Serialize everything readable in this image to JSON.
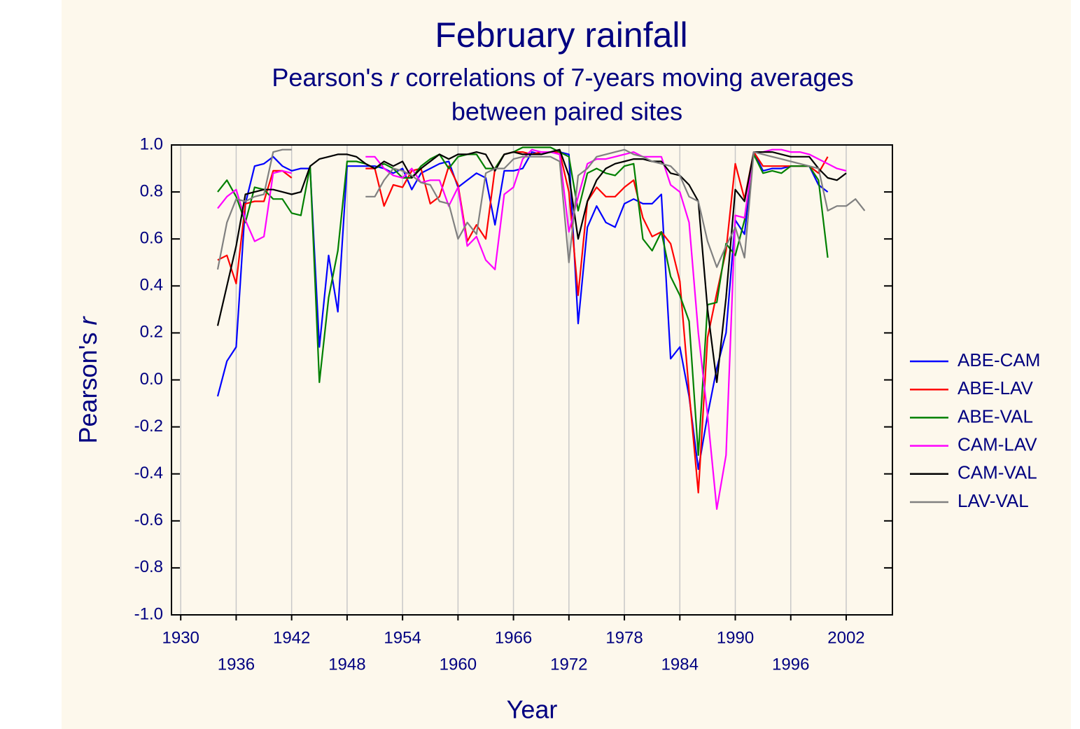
{
  "chart_data": {
    "type": "line",
    "title": "February rainfall",
    "subtitle": {
      "line1_start": "Pearson's ",
      "line1_italic": "r",
      "line1_end": " correlations of 7-years moving averages",
      "line2": "between paired sites"
    },
    "x_label": "Year",
    "y_label": {
      "text": "Pearson's ",
      "italic": "r"
    },
    "x": [
      1934,
      1935,
      1936,
      1937,
      1938,
      1939,
      1940,
      1941,
      1942,
      1943,
      1944,
      1945,
      1946,
      1947,
      1948,
      1949,
      1950,
      1951,
      1952,
      1953,
      1954,
      1955,
      1956,
      1957,
      1958,
      1959,
      1960,
      1961,
      1962,
      1963,
      1964,
      1965,
      1966,
      1967,
      1968,
      1969,
      1970,
      1971,
      1972,
      1973,
      1974,
      1975,
      1976,
      1977,
      1978,
      1979,
      1980,
      1981,
      1982,
      1983,
      1984,
      1985,
      1986,
      1987,
      1988,
      1989,
      1990,
      1991,
      1992,
      1993,
      1994,
      1995,
      1996,
      1997,
      1998,
      1999,
      2000,
      2001,
      2002,
      2003,
      2004
    ],
    "series": [
      {
        "name": "ABE-CAM",
        "color": "#0000ff",
        "values": [
          -0.07,
          0.08,
          0.14,
          0.75,
          0.91,
          0.92,
          0.95,
          0.91,
          0.89,
          0.9,
          0.9,
          0.14,
          0.53,
          0.29,
          0.91,
          0.91,
          0.91,
          0.91,
          0.9,
          0.88,
          0.9,
          0.81,
          0.88,
          0.9,
          0.92,
          0.93,
          0.82,
          0.85,
          0.88,
          0.86,
          0.66,
          0.89,
          0.89,
          0.9,
          0.97,
          0.96,
          0.97,
          0.97,
          0.96,
          0.24,
          0.65,
          0.74,
          0.67,
          0.65,
          0.75,
          0.77,
          0.75,
          0.75,
          0.79,
          0.09,
          0.14,
          -0.07,
          -0.38,
          -0.15,
          0.05,
          0.2,
          0.68,
          0.62,
          0.97,
          0.89,
          0.9,
          0.9,
          0.91,
          0.91,
          0.91,
          0.83,
          0.8,
          null,
          null,
          null,
          null
        ]
      },
      {
        "name": "ABE-LAV",
        "color": "#ff0000",
        "values": [
          0.51,
          0.53,
          0.41,
          0.75,
          0.76,
          0.76,
          0.89,
          0.89,
          0.86,
          null,
          null,
          null,
          null,
          null,
          null,
          null,
          0.9,
          0.9,
          0.74,
          0.83,
          0.82,
          0.89,
          0.9,
          0.75,
          0.78,
          0.91,
          0.83,
          0.59,
          0.66,
          0.6,
          0.9,
          0.96,
          0.97,
          0.97,
          0.96,
          0.97,
          0.97,
          0.97,
          0.8,
          0.36,
          0.76,
          0.82,
          0.78,
          0.78,
          0.82,
          0.85,
          0.69,
          0.61,
          0.63,
          0.58,
          0.42,
          -0.05,
          -0.48,
          0.18,
          0.37,
          0.55,
          0.92,
          0.77,
          0.97,
          0.91,
          0.91,
          0.91,
          0.91,
          0.91,
          0.91,
          0.88,
          0.95,
          null,
          null,
          null,
          null
        ]
      },
      {
        "name": "ABE-VAL",
        "color": "#008000",
        "values": [
          0.8,
          0.85,
          0.78,
          0.67,
          0.82,
          0.81,
          0.77,
          0.77,
          0.71,
          0.7,
          0.91,
          -0.01,
          0.35,
          0.55,
          0.93,
          0.93,
          0.92,
          0.9,
          0.92,
          0.9,
          0.86,
          0.86,
          0.91,
          0.94,
          0.96,
          0.9,
          0.95,
          0.96,
          0.96,
          0.9,
          0.9,
          0.96,
          0.97,
          0.99,
          0.99,
          0.99,
          0.99,
          0.97,
          0.95,
          0.72,
          0.88,
          0.9,
          0.88,
          0.87,
          0.91,
          0.92,
          0.6,
          0.55,
          0.63,
          0.44,
          0.36,
          0.25,
          -0.32,
          0.32,
          0.33,
          0.58,
          0.53,
          0.68,
          0.96,
          0.88,
          0.89,
          0.88,
          0.91,
          0.91,
          0.91,
          0.85,
          0.52,
          null,
          null,
          null,
          null
        ]
      },
      {
        "name": "CAM-LAV",
        "color": "#ff00ff",
        "values": [
          0.73,
          0.78,
          0.81,
          0.68,
          0.59,
          0.61,
          0.88,
          0.89,
          0.88,
          null,
          null,
          null,
          null,
          null,
          null,
          null,
          0.95,
          0.95,
          0.9,
          0.87,
          0.86,
          0.9,
          0.84,
          0.85,
          0.85,
          0.74,
          0.82,
          0.57,
          0.61,
          0.51,
          0.47,
          0.79,
          0.82,
          0.94,
          0.98,
          0.97,
          0.97,
          0.96,
          0.63,
          0.78,
          0.92,
          0.94,
          0.94,
          0.95,
          0.96,
          0.97,
          0.95,
          0.95,
          0.95,
          0.83,
          0.8,
          0.67,
          0.2,
          -0.15,
          -0.55,
          -0.32,
          0.7,
          0.69,
          0.97,
          0.97,
          0.98,
          0.98,
          0.97,
          0.97,
          0.96,
          0.94,
          0.92,
          0.9,
          0.89,
          null,
          null
        ]
      },
      {
        "name": "CAM-VAL",
        "color": "#000000",
        "values": [
          0.23,
          0.4,
          0.57,
          0.79,
          0.8,
          0.81,
          0.81,
          0.8,
          0.79,
          0.8,
          0.91,
          0.94,
          0.95,
          0.96,
          0.96,
          0.95,
          0.92,
          0.9,
          0.93,
          0.91,
          0.93,
          0.86,
          0.9,
          0.93,
          0.96,
          0.94,
          0.96,
          0.96,
          0.97,
          0.96,
          0.89,
          0.96,
          0.97,
          0.96,
          0.96,
          0.96,
          0.97,
          0.98,
          0.87,
          0.6,
          0.76,
          0.85,
          0.9,
          0.92,
          0.93,
          0.94,
          0.94,
          0.93,
          0.93,
          0.88,
          0.87,
          0.83,
          0.76,
          0.3,
          -0.01,
          0.35,
          0.81,
          0.76,
          0.97,
          0.97,
          0.97,
          0.96,
          0.95,
          0.95,
          0.95,
          0.9,
          0.86,
          0.85,
          0.88,
          null,
          null
        ]
      },
      {
        "name": "LAV-VAL",
        "color": "#808080",
        "values": [
          0.47,
          0.67,
          0.77,
          0.76,
          0.78,
          0.79,
          0.97,
          0.98,
          0.98,
          null,
          null,
          null,
          null,
          null,
          null,
          null,
          0.78,
          0.78,
          0.85,
          0.9,
          0.89,
          0.87,
          0.84,
          0.83,
          0.76,
          0.75,
          0.6,
          0.67,
          0.62,
          0.88,
          0.9,
          0.9,
          0.94,
          0.95,
          0.95,
          0.95,
          0.95,
          0.93,
          0.5,
          0.87,
          0.9,
          0.95,
          0.96,
          0.97,
          0.98,
          0.96,
          0.95,
          0.93,
          0.92,
          0.91,
          0.87,
          0.78,
          0.76,
          0.59,
          0.48,
          0.57,
          0.65,
          0.52,
          0.97,
          0.96,
          0.95,
          0.94,
          0.93,
          0.92,
          0.91,
          0.9,
          0.72,
          0.74,
          0.74,
          0.77,
          0.72
        ]
      }
    ],
    "xlim": [
      1929,
      2007
    ],
    "xticks": [
      1930,
      1936,
      1942,
      1948,
      1954,
      1960,
      1966,
      1972,
      1978,
      1984,
      1990,
      1996,
      2002
    ],
    "ylim": [
      -1,
      1
    ],
    "yticks": [
      {
        "value": -1,
        "label": "-1.0"
      },
      -0.8,
      -0.6,
      -0.4,
      -0.2,
      {
        "value": 0,
        "label": "0.0"
      },
      0.2,
      0.4,
      0.6,
      0.8,
      {
        "value": 1,
        "label": "1.0"
      }
    ],
    "grid": "x",
    "legend": "right"
  }
}
